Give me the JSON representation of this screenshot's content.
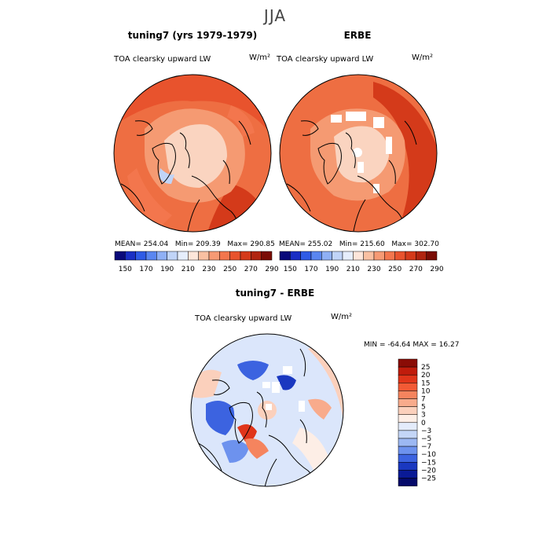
{
  "page": {
    "title": "JJA"
  },
  "panels": [
    {
      "id": "model",
      "title": "tuning7 (yrs 1979-1979)",
      "variable": "TOA clearsky upward LW",
      "units": "W/m²",
      "stats": {
        "mean_label": "MEAN=",
        "mean": "254.04",
        "min_label": "Min=",
        "min": "209.39",
        "max_label": "Max=",
        "max": "290.85"
      }
    },
    {
      "id": "obs",
      "title": "ERBE",
      "variable": "TOA clearsky upward LW",
      "units": "W/m²",
      "stats": {
        "mean_label": "MEAN=",
        "mean": "255.02",
        "min_label": "Min=",
        "min": "215.60",
        "max_label": "Max=",
        "max": "302.70"
      }
    }
  ],
  "top_colorbar": {
    "ticks": [
      "150",
      "170",
      "190",
      "210",
      "230",
      "250",
      "270",
      "290"
    ],
    "colors": [
      "#0a0a7a",
      "#1a2fc4",
      "#2f5be6",
      "#5a86f0",
      "#8fb0f5",
      "#c0d4f8",
      "#e6eefc",
      "#fde6da",
      "#f9c0a2",
      "#f69a74",
      "#f3764d",
      "#e8532d",
      "#d43a1a",
      "#b02410",
      "#7a0d06"
    ]
  },
  "diff_panel": {
    "title": "tuning7 - ERBE",
    "variable": "TOA clearsky upward LW",
    "units": "W/m²",
    "minmax": {
      "min_label": "MIN =",
      "min": "-64.64",
      "max_label": "MAX =",
      "max": "16.27"
    }
  },
  "diff_colorbar": {
    "ticks": [
      "25",
      "20",
      "15",
      "10",
      "7",
      "5",
      "3",
      "0",
      "−3",
      "−5",
      "−7",
      "−10",
      "−15",
      "−20",
      "−25"
    ],
    "colors": [
      "#8a0c06",
      "#c01c0c",
      "#e0351a",
      "#f25a35",
      "#f5845e",
      "#f8ab8c",
      "#fbd0bc",
      "#fdeee6",
      "#e4ecfb",
      "#c4d6f7",
      "#9cb8f3",
      "#6d92ee",
      "#3c63e0",
      "#1a38c0",
      "#0a1a96",
      "#050a6a"
    ]
  },
  "colors": {
    "ocean_warm": "#ee6e42",
    "land_mid": "#f59a72",
    "polar_pale": "#fad4c0",
    "diff_bg": "#dbe6fb",
    "coast": "#000000"
  }
}
